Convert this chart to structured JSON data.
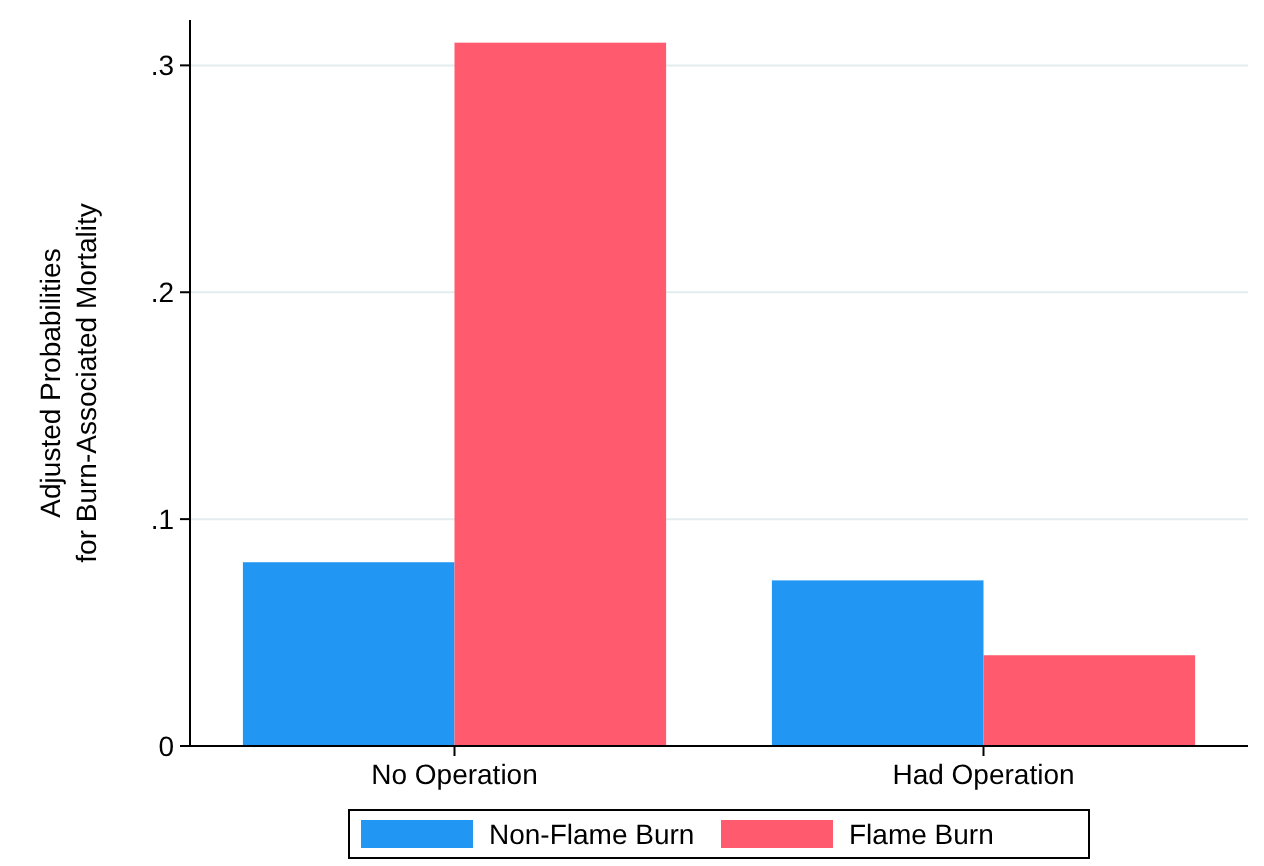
{
  "chart_data": {
    "type": "bar",
    "ylabel": "Adjusted Probabilities\nfor Burn-Associated Mortality",
    "categories": [
      "No Operation",
      "Had Operation"
    ],
    "series": [
      {
        "name": "Non-Flame Burn",
        "color": "#2196f3",
        "values": [
          0.081,
          0.073
        ]
      },
      {
        "name": "Flame Burn",
        "color": "#ff5a6e",
        "values": [
          0.31,
          0.04
        ]
      }
    ],
    "ylim": [
      0,
      0.32
    ],
    "yticks": [
      0,
      {
        "value": 0.1,
        "label": ".1"
      },
      {
        "value": 0.2,
        "label": ".2"
      },
      {
        "value": 0.3,
        "label": ".3"
      }
    ],
    "grid": "y",
    "legend": "bottom"
  }
}
